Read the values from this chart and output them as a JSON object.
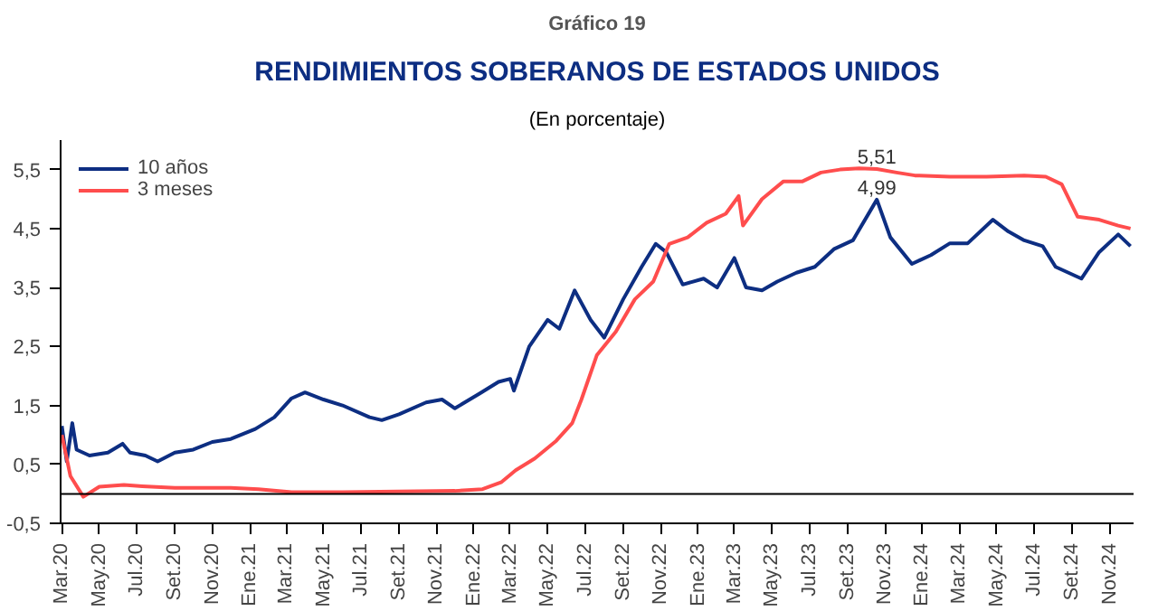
{
  "chart_data": {
    "type": "line",
    "title": "Gráfico 19",
    "subtitle": "RENDIMIENTOS SOBERANOS DE ESTADOS UNIDOS",
    "annotations": [
      "(En porcentaje)",
      {
        "text": "5,51",
        "x": "2023-10-19",
        "y": 5.51
      },
      {
        "text": "4,99",
        "x": "2023-10-19",
        "y": 4.99
      }
    ],
    "series": [
      {
        "name": "10 años",
        "color": "#0d2e82",
        "x": [
          "2020-03-01",
          "2020-03-09",
          "2020-03-18",
          "2020-03-25",
          "2020-04-15",
          "2020-05-15",
          "2020-06-08",
          "2020-06-20",
          "2020-07-15",
          "2020-08-04",
          "2020-09-01",
          "2020-10-01",
          "2020-11-01",
          "2020-12-01",
          "2021-01-10",
          "2021-02-10",
          "2021-03-10",
          "2021-04-01",
          "2021-05-01",
          "2021-06-01",
          "2021-07-15",
          "2021-08-04",
          "2021-09-01",
          "2021-10-15",
          "2021-11-10",
          "2021-12-01",
          "2022-01-10",
          "2022-02-10",
          "2022-03-01",
          "2022-03-07",
          "2022-04-01",
          "2022-05-01",
          "2022-05-20",
          "2022-06-14",
          "2022-07-10",
          "2022-08-01",
          "2022-09-01",
          "2022-10-01",
          "2022-10-24",
          "2022-11-10",
          "2022-12-07",
          "2023-01-10",
          "2023-02-01",
          "2023-03-01",
          "2023-03-20",
          "2023-04-15",
          "2023-05-10",
          "2023-06-10",
          "2023-07-10",
          "2023-08-10",
          "2023-09-10",
          "2023-10-19",
          "2023-11-10",
          "2023-12-15",
          "2024-01-15",
          "2024-02-15",
          "2024-03-15",
          "2024-04-25",
          "2024-05-20",
          "2024-06-15",
          "2024-07-15",
          "2024-08-05",
          "2024-09-16",
          "2024-10-15",
          "2024-11-15",
          "2024-12-05"
        ],
        "values": [
          1.15,
          0.55,
          1.2,
          0.75,
          0.65,
          0.7,
          0.85,
          0.7,
          0.65,
          0.55,
          0.7,
          0.75,
          0.88,
          0.93,
          1.1,
          1.3,
          1.62,
          1.72,
          1.6,
          1.5,
          1.3,
          1.25,
          1.35,
          1.55,
          1.6,
          1.45,
          1.7,
          1.9,
          1.95,
          1.75,
          2.5,
          2.95,
          2.8,
          3.45,
          2.95,
          2.65,
          3.3,
          3.85,
          4.24,
          4.1,
          3.55,
          3.65,
          3.5,
          4.0,
          3.5,
          3.45,
          3.6,
          3.75,
          3.85,
          4.15,
          4.3,
          4.99,
          4.35,
          3.9,
          4.05,
          4.25,
          4.25,
          4.65,
          4.45,
          4.3,
          4.2,
          3.85,
          3.65,
          4.1,
          4.4,
          4.2
        ]
      },
      {
        "name": "3 meses",
        "color": "#ff4d4d",
        "x": [
          "2020-03-01",
          "2020-03-15",
          "2020-04-05",
          "2020-05-01",
          "2020-06-10",
          "2020-07-10",
          "2020-09-01",
          "2020-12-01",
          "2021-01-15",
          "2021-03-10",
          "2021-06-01",
          "2021-09-01",
          "2021-12-01",
          "2022-01-15",
          "2022-02-15",
          "2022-03-10",
          "2022-04-10",
          "2022-05-15",
          "2022-06-10",
          "2022-06-25",
          "2022-07-20",
          "2022-08-20",
          "2022-09-20",
          "2022-10-20",
          "2022-11-15",
          "2022-12-15",
          "2023-01-15",
          "2023-02-15",
          "2023-03-08",
          "2023-03-15",
          "2023-04-15",
          "2023-05-20",
          "2023-06-20",
          "2023-07-20",
          "2023-08-20",
          "2023-09-20",
          "2023-10-19",
          "2023-11-20",
          "2023-12-20",
          "2024-02-15",
          "2024-04-15",
          "2024-06-15",
          "2024-07-20",
          "2024-08-15",
          "2024-09-10",
          "2024-10-15",
          "2024-11-15",
          "2024-12-05"
        ],
        "values": [
          1.0,
          0.3,
          -0.05,
          0.12,
          0.15,
          0.13,
          0.1,
          0.1,
          0.08,
          0.03,
          0.03,
          0.04,
          0.05,
          0.08,
          0.2,
          0.4,
          0.6,
          0.9,
          1.2,
          1.6,
          2.35,
          2.75,
          3.3,
          3.6,
          4.24,
          4.35,
          4.6,
          4.75,
          5.05,
          4.55,
          5.0,
          5.3,
          5.3,
          5.45,
          5.5,
          5.52,
          5.51,
          5.45,
          5.4,
          5.38,
          5.38,
          5.4,
          5.38,
          5.25,
          4.7,
          4.65,
          4.55,
          4.5
        ]
      }
    ],
    "xlim": [
      "2020-02-28",
      "2024-12-10"
    ],
    "xticks": [
      {
        "value": "2020-03-01",
        "label": "Mar.20"
      },
      {
        "value": "2020-05-01",
        "label": "May.20"
      },
      {
        "value": "2020-07-01",
        "label": "Jul.20"
      },
      {
        "value": "2020-09-01",
        "label": "Set.20"
      },
      {
        "value": "2020-11-01",
        "label": "Nov.20"
      },
      {
        "value": "2021-01-01",
        "label": "Ene.21"
      },
      {
        "value": "2021-03-01",
        "label": "Mar.21"
      },
      {
        "value": "2021-05-01",
        "label": "May.21"
      },
      {
        "value": "2021-07-01",
        "label": "Jul.21"
      },
      {
        "value": "2021-09-01",
        "label": "Set.21"
      },
      {
        "value": "2021-11-01",
        "label": "Nov.21"
      },
      {
        "value": "2022-01-01",
        "label": "Ene.22"
      },
      {
        "value": "2022-03-01",
        "label": "Mar.22"
      },
      {
        "value": "2022-05-01",
        "label": "May.22"
      },
      {
        "value": "2022-07-01",
        "label": "Jul.22"
      },
      {
        "value": "2022-09-01",
        "label": "Set.22"
      },
      {
        "value": "2022-11-01",
        "label": "Nov.22"
      },
      {
        "value": "2023-01-01",
        "label": "Ene.23"
      },
      {
        "value": "2023-03-01",
        "label": "Mar.23"
      },
      {
        "value": "2023-05-01",
        "label": "May.23"
      },
      {
        "value": "2023-07-01",
        "label": "Jul.23"
      },
      {
        "value": "2023-09-01",
        "label": "Set.23"
      },
      {
        "value": "2023-11-01",
        "label": "Nov.23"
      },
      {
        "value": "2024-01-01",
        "label": "Ene.24"
      },
      {
        "value": "2024-03-01",
        "label": "Mar.24"
      },
      {
        "value": "2024-05-01",
        "label": "May.24"
      },
      {
        "value": "2024-07-01",
        "label": "Jul.24"
      },
      {
        "value": "2024-09-01",
        "label": "Set.24"
      },
      {
        "value": "2024-11-01",
        "label": "Nov.24"
      }
    ],
    "ylim": [
      -0.5,
      6.0
    ],
    "yticks": [
      {
        "value": -0.5,
        "label": "-0,5"
      },
      {
        "value": 0.5,
        "label": "0,5"
      },
      {
        "value": 1.5,
        "label": "1,5"
      },
      {
        "value": 2.5,
        "label": "2,5"
      },
      {
        "value": 3.5,
        "label": "3,5"
      },
      {
        "value": 4.5,
        "label": "4,5"
      },
      {
        "value": 5.5,
        "label": "5,5"
      }
    ],
    "ref_lines": [
      {
        "axis": "y",
        "value": 0,
        "color": "#000000"
      }
    ],
    "grid": false,
    "legend": "top left",
    "line_style": "solid",
    "marker": "none"
  }
}
